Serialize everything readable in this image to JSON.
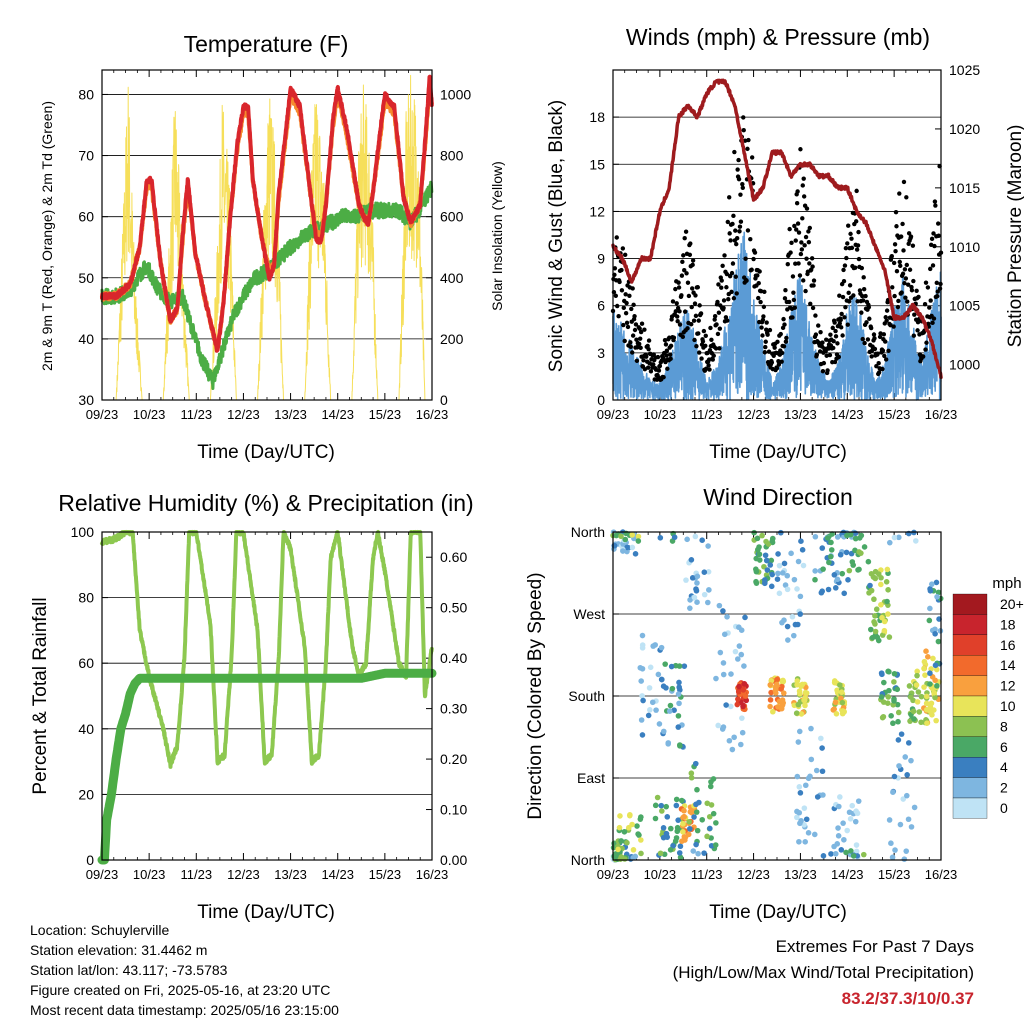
{
  "x_ticks": [
    "09/23",
    "10/23",
    "11/23",
    "12/23",
    "13/23",
    "14/23",
    "15/23",
    "16/23"
  ],
  "panels": {
    "temperature": {
      "title": "Temperature (F)",
      "xlabel": "Time (Day/UTC)",
      "ylabel_left": "2m & 9m T (Red, Orange) & 2m Td (Green)",
      "ylabel_right": "Solar Insolation (Yellow)"
    },
    "winds": {
      "title": "Winds (mph) & Pressure (mb)",
      "xlabel": "Time (Day/UTC)",
      "ylabel_left": "Sonic Wind & Gust (Blue, Black)",
      "ylabel_right": "Station Pressure (Maroon)"
    },
    "humidity": {
      "title": "Relative Humidity (%) & Precipitation (in)",
      "xlabel": "Time (Day/UTC)",
      "ylabel_left": "Percent & Total Rainfall"
    },
    "direction": {
      "title": "Wind Direction",
      "xlabel": "Time (Day/UTC)",
      "ylabel_left": "Direction (Colored By Speed)",
      "legend_title": "mph",
      "legend_labels": [
        "20+",
        "18",
        "16",
        "14",
        "12",
        "10",
        "8",
        "6",
        "4",
        "2",
        "0"
      ],
      "legend_colors": [
        "#a3191f",
        "#c8242d",
        "#e0402a",
        "#f26a2c",
        "#f9a03e",
        "#e8e45a",
        "#8cc152",
        "#4aa866",
        "#3a7fc0",
        "#7eb6e0",
        "#bfe3f5"
      ]
    }
  },
  "chart_data": [
    {
      "type": "line",
      "title": "Temperature (F)",
      "xlabel": "Time (Day/UTC)",
      "ylabel": "2m & 9m T (Red, Orange) & 2m Td (Green)",
      "y2label": "Solar Insolation (Yellow)",
      "xlim": [
        9,
        16
      ],
      "ylim": [
        30,
        84
      ],
      "y2lim": [
        0,
        1080
      ],
      "yticks": [
        30,
        40,
        50,
        60,
        70,
        80
      ],
      "y2ticks": [
        0,
        200,
        400,
        600,
        800,
        1000
      ],
      "series": [
        {
          "color": "#d9262c",
          "x": [
            9.0,
            9.3,
            9.6,
            9.8,
            9.95,
            10.05,
            10.25,
            10.45,
            10.6,
            10.72,
            10.82,
            10.98,
            11.2,
            11.45,
            11.58,
            11.72,
            11.87,
            12.0,
            12.1,
            12.2,
            12.4,
            12.55,
            12.65,
            12.75,
            12.9,
            13.0,
            13.2,
            13.45,
            13.55,
            13.65,
            13.75,
            13.9,
            14.0,
            14.2,
            14.45,
            14.55,
            14.65,
            14.75,
            14.9,
            15.0,
            15.2,
            15.4,
            15.55,
            15.75,
            15.87,
            15.95,
            16.0
          ],
          "y": [
            47,
            47,
            49,
            55,
            66,
            66,
            52,
            43,
            45,
            58,
            66,
            54,
            46,
            38,
            46,
            60,
            72,
            78,
            78,
            66,
            56,
            50,
            52,
            64,
            74,
            81,
            78,
            62,
            56,
            56,
            62,
            76,
            81,
            74,
            62,
            60,
            59,
            64,
            74,
            80,
            78,
            63,
            59,
            62,
            74,
            83,
            78
          ]
        },
        {
          "color": "#f68a2d",
          "x": [
            9.0,
            9.3,
            9.6,
            9.8,
            9.95,
            10.05,
            10.25,
            10.45,
            10.6,
            10.72,
            10.82,
            10.98,
            11.2,
            11.45,
            11.58,
            11.72,
            11.87,
            12.0,
            12.1,
            12.2,
            12.4,
            12.55,
            12.65,
            12.75,
            12.9,
            13.0,
            13.2,
            13.45,
            13.55,
            13.65,
            13.75,
            13.9,
            14.0,
            14.2,
            14.45,
            14.55,
            14.65,
            14.75,
            14.9,
            15.0,
            15.2,
            15.4,
            15.55,
            15.75,
            15.87,
            15.95,
            16.0
          ],
          "y": [
            47,
            47,
            49,
            55,
            65,
            65,
            52,
            43,
            45,
            57,
            65,
            54,
            46,
            38,
            46,
            60,
            71,
            77,
            77,
            66,
            56,
            51,
            52,
            63,
            73,
            80,
            77,
            62,
            57,
            57,
            62,
            75,
            80,
            73,
            62,
            60,
            59,
            64,
            73,
            79,
            77,
            63,
            59,
            62,
            73,
            82,
            78
          ]
        },
        {
          "color": "#4cad45",
          "x": [
            9.0,
            9.3,
            9.6,
            9.75,
            9.95,
            10.2,
            10.45,
            10.7,
            10.9,
            11.1,
            11.35,
            11.55,
            11.8,
            12.0,
            12.25,
            12.5,
            12.75,
            13.0,
            13.3,
            13.6,
            13.85,
            14.1,
            14.4,
            14.7,
            15.0,
            15.3,
            15.55,
            15.8,
            16.0
          ],
          "y": [
            47,
            47,
            48,
            50,
            52,
            48,
            46,
            47,
            42,
            37,
            33,
            38,
            44,
            47,
            50,
            51,
            53,
            55,
            57,
            58,
            59,
            60,
            60,
            61,
            61,
            61,
            59,
            62,
            65
          ]
        },
        {
          "color": "#f6df5a",
          "axis": "right",
          "x": [
            9.0,
            9.3,
            9.45,
            9.55,
            9.7,
            9.85,
            10.0,
            10.3,
            10.45,
            10.55,
            10.7,
            10.85,
            11.0,
            11.3,
            11.45,
            11.55,
            11.7,
            11.85,
            12.0,
            12.3,
            12.45,
            12.55,
            12.7,
            12.85,
            13.0,
            13.3,
            13.45,
            13.55,
            13.7,
            13.85,
            14.0,
            14.3,
            14.45,
            14.55,
            14.7,
            14.85,
            15.0,
            15.3,
            15.45,
            15.55,
            15.7,
            15.85,
            16.0
          ],
          "y": [
            0,
            0,
            600,
            1050,
            400,
            0,
            0,
            0,
            600,
            980,
            500,
            0,
            0,
            0,
            500,
            960,
            700,
            0,
            0,
            0,
            700,
            1000,
            750,
            0,
            0,
            0,
            800,
            1010,
            750,
            0,
            0,
            0,
            850,
            1000,
            800,
            0,
            0,
            0,
            900,
            1020,
            950,
            0,
            0
          ]
        }
      ]
    },
    {
      "type": "scatter",
      "title": "Winds (mph) & Pressure (mb)",
      "xlabel": "Time (Day/UTC)",
      "ylabel": "Sonic Wind & Gust (Blue, Black)",
      "y2label": "Station Pressure (Maroon)",
      "xlim": [
        9,
        16
      ],
      "ylim": [
        0,
        21
      ],
      "y2lim": [
        997,
        1025
      ],
      "yticks": [
        0,
        3,
        6,
        9,
        12,
        15,
        18
      ],
      "y2ticks": [
        1000,
        1005,
        1010,
        1015,
        1020,
        1025
      ],
      "series": [
        {
          "color": "#9e1b1e",
          "axis": "right",
          "x": [
            9.0,
            9.2,
            9.4,
            9.6,
            9.8,
            10.0,
            10.2,
            10.4,
            10.6,
            10.8,
            11.0,
            11.2,
            11.4,
            11.6,
            11.8,
            12.0,
            12.2,
            12.4,
            12.6,
            12.8,
            13.0,
            13.2,
            13.4,
            13.6,
            13.8,
            14.0,
            14.2,
            14.4,
            14.6,
            14.8,
            15.0,
            15.2,
            15.4,
            15.6,
            15.8,
            16.0
          ],
          "y": [
            1010,
            1009,
            1007,
            1009,
            1009,
            1013,
            1015,
            1021,
            1022,
            1021,
            1023,
            1024,
            1024,
            1022,
            1018,
            1014,
            1015,
            1018,
            1018,
            1016,
            1017,
            1017,
            1016,
            1016,
            1015,
            1015,
            1013,
            1012,
            1010,
            1008,
            1004,
            1004,
            1005,
            1004,
            1002,
            999
          ]
        },
        {
          "color": "#5b9bd5",
          "x": [
            9.0,
            9.2,
            9.4,
            9.6,
            9.8,
            10.0,
            10.2,
            10.4,
            10.6,
            10.8,
            11.0,
            11.2,
            11.4,
            11.6,
            11.8,
            12.0,
            12.2,
            12.4,
            12.6,
            12.8,
            13.0,
            13.2,
            13.4,
            13.6,
            13.8,
            14.0,
            14.2,
            14.4,
            14.6,
            14.8,
            15.0,
            15.2,
            15.4,
            15.6,
            15.8,
            16.0
          ],
          "y": [
            5,
            4,
            3,
            2,
            1,
            1,
            2,
            4,
            5,
            3,
            1,
            2,
            4,
            7,
            9,
            6,
            3,
            1,
            2,
            5,
            7,
            4,
            2,
            1,
            2,
            5,
            6,
            3,
            1,
            2,
            5,
            7,
            4,
            2,
            5,
            7
          ]
        },
        {
          "color": "#000000",
          "x": [
            9.0,
            9.2,
            9.4,
            9.6,
            9.8,
            10.0,
            10.2,
            10.4,
            10.6,
            10.8,
            11.0,
            11.2,
            11.4,
            11.6,
            11.8,
            12.0,
            12.2,
            12.4,
            12.6,
            12.8,
            13.0,
            13.2,
            13.4,
            13.6,
            13.8,
            14.0,
            14.2,
            14.4,
            14.6,
            14.8,
            15.0,
            15.2,
            15.4,
            15.6,
            15.8,
            16.0
          ],
          "y": [
            10,
            8,
            6,
            4,
            3,
            2,
            4,
            7,
            9,
            6,
            3,
            5,
            9,
            13,
            15,
            12,
            6,
            3,
            4,
            10,
            13,
            9,
            4,
            3,
            5,
            9,
            11,
            6,
            3,
            4,
            9,
            12,
            8,
            4,
            9,
            13
          ]
        }
      ]
    },
    {
      "type": "line",
      "title": "Relative Humidity (%) & Precipitation (in)",
      "xlabel": "Time (Day/UTC)",
      "ylabel": "Percent & Total Rainfall",
      "xlim": [
        9,
        16
      ],
      "ylim": [
        0,
        100
      ],
      "y2lim": [
        0,
        0.65
      ],
      "yticks": [
        0,
        20,
        40,
        60,
        80,
        100
      ],
      "y2ticks": [
        "0.00",
        "0.10",
        "0.20",
        "0.30",
        "0.40",
        "0.50",
        "0.60"
      ],
      "series": [
        {
          "color": "#8dc850",
          "x": [
            9.0,
            9.05,
            9.3,
            9.5,
            9.65,
            9.8,
            10.0,
            10.3,
            10.45,
            10.6,
            10.75,
            10.85,
            11.0,
            11.3,
            11.45,
            11.6,
            11.75,
            11.85,
            12.0,
            12.3,
            12.45,
            12.6,
            12.75,
            12.85,
            13.0,
            13.3,
            13.45,
            13.6,
            13.75,
            13.85,
            14.0,
            14.3,
            14.45,
            14.6,
            14.75,
            14.85,
            15.0,
            15.3,
            15.45,
            15.55,
            15.75,
            15.85,
            16.0
          ],
          "y": [
            97,
            97,
            98,
            100,
            100,
            70,
            56,
            40,
            29,
            35,
            62,
            100,
            100,
            72,
            30,
            32,
            62,
            100,
            100,
            70,
            30,
            32,
            62,
            100,
            95,
            65,
            30,
            32,
            60,
            92,
            100,
            66,
            56,
            60,
            92,
            100,
            88,
            60,
            56,
            100,
            100,
            50,
            65
          ]
        },
        {
          "color": "#4cad45",
          "axis": "right",
          "x": [
            9.0,
            9.05,
            9.1,
            9.2,
            9.3,
            9.4,
            9.5,
            9.6,
            9.7,
            9.8,
            10.0,
            11.0,
            12.0,
            13.0,
            14.0,
            14.5,
            15.0,
            16.0
          ],
          "y": [
            0.0,
            0.0,
            0.08,
            0.13,
            0.2,
            0.26,
            0.29,
            0.33,
            0.35,
            0.36,
            0.36,
            0.36,
            0.36,
            0.36,
            0.36,
            0.36,
            0.37,
            0.37
          ]
        }
      ]
    },
    {
      "type": "scatter",
      "title": "Wind Direction",
      "xlabel": "Time (Day/UTC)",
      "ylabel": "Direction (Colored By Speed)",
      "xlim": [
        9,
        16
      ],
      "ylim": [
        0,
        360
      ],
      "ytick_labels": [
        "North",
        "East",
        "South",
        "West",
        "North"
      ],
      "yticks": [
        0,
        90,
        180,
        270,
        360
      ],
      "legend": {
        "title": "mph",
        "placement": "right"
      }
    }
  ],
  "footer": {
    "location": "Location: Schuylerville",
    "elevation": "Station elevation: 31.4462 m",
    "latlon": "Station lat/lon: 43.117; -73.5783",
    "created": "Figure created on Fri, 2025-05-16, at 23:20 UTC",
    "recent": "Most recent data timestamp: 2025/05/16 23:15:00",
    "extremes_title": "Extremes For Past 7 Days",
    "extremes_sub": "(High/Low/Max Wind/Total Precipitation)",
    "extremes_value": "83.2/37.3/10/0.37"
  }
}
